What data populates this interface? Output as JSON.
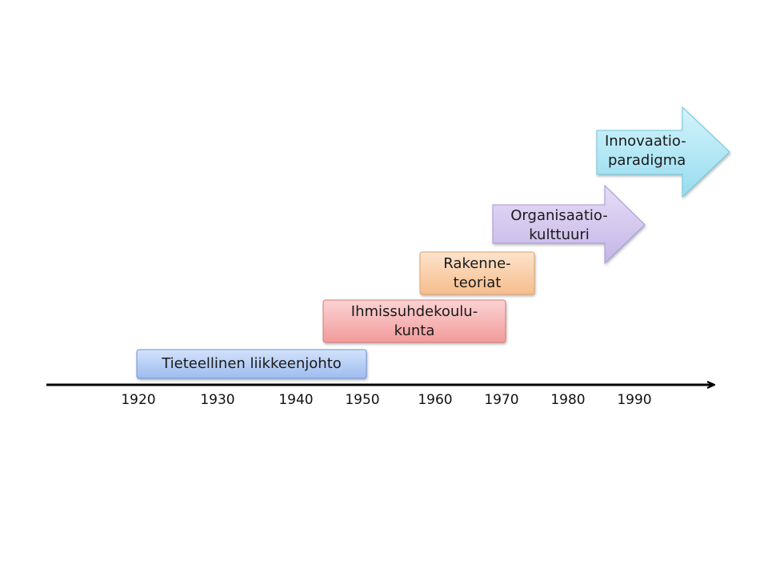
{
  "timeline": {
    "years": [
      "1920",
      "1930",
      "1940",
      "1950",
      "1960",
      "1970",
      "1980",
      "1990"
    ]
  },
  "eras": [
    {
      "lines": [
        "Tieteellinen liikkeenjohto"
      ],
      "color": "#a9c4ef"
    },
    {
      "lines": [
        "Ihmissuhdekoulu-",
        "kunta"
      ],
      "color": "#f3a4a4"
    },
    {
      "lines": [
        "Rakenne-",
        "teoriat"
      ],
      "color": "#f8c9a0"
    },
    {
      "lines": [
        "Organisaatio-",
        "kulttuuri"
      ],
      "color": "#cdbfea"
    },
    {
      "lines": [
        "Innovaatio-",
        "paradigma"
      ],
      "color": "#a6e3f2"
    }
  ]
}
